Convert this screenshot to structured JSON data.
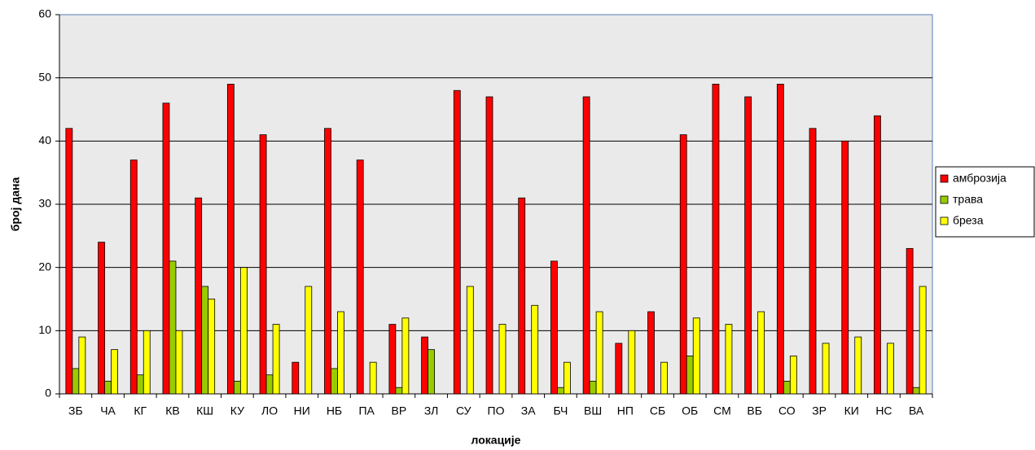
{
  "chart_data": {
    "type": "bar",
    "x_label": "локације",
    "y_label": "број дана",
    "categories": [
      "ЗБ",
      "ЧА",
      "КГ",
      "КВ",
      "КШ",
      "КУ",
      "ЛО",
      "НИ",
      "НБ",
      "ПА",
      "ВР",
      "ЗЛ",
      "СУ",
      "ПО",
      "ЗА",
      "БЧ",
      "ВШ",
      "НП",
      "СБ",
      "ОБ",
      "СМ",
      "ВБ",
      "СО",
      "ЗР",
      "КИ",
      "НС",
      "ВА"
    ],
    "series": [
      {
        "name": "амброзија",
        "color": "#ff0000",
        "values": [
          42,
          24,
          37,
          46,
          31,
          49,
          41,
          5,
          42,
          37,
          11,
          9,
          48,
          47,
          31,
          21,
          47,
          8,
          13,
          41,
          49,
          47,
          49,
          42,
          40,
          44,
          23
        ]
      },
      {
        "name": "трава",
        "color": "#99cc00",
        "values": [
          4,
          2,
          3,
          21,
          17,
          2,
          3,
          0,
          4,
          0,
          1,
          7,
          0,
          0,
          0,
          1,
          2,
          0,
          0,
          6,
          0,
          0,
          2,
          0,
          0,
          0,
          1
        ]
      },
      {
        "name": "бреза",
        "color": "#ffff00",
        "values": [
          9,
          7,
          10,
          10,
          15,
          20,
          11,
          17,
          13,
          5,
          12,
          0,
          17,
          11,
          14,
          5,
          13,
          10,
          5,
          12,
          11,
          13,
          6,
          8,
          9,
          8,
          17
        ]
      }
    ],
    "ylim": [
      0,
      60
    ],
    "yticks": [
      0,
      10,
      20,
      30,
      40,
      50,
      60
    ],
    "grid": true,
    "legend": "right"
  }
}
